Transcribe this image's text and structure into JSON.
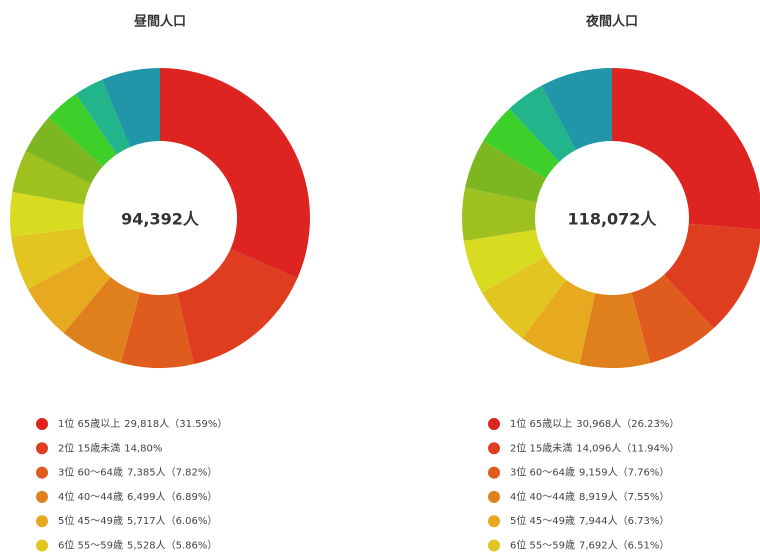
{
  "chart_data": [
    {
      "type": "donut",
      "title": "昼間人口",
      "center_label": "94,392人",
      "categories": [
        "1位 65歳以上",
        "2位 15歳未満",
        "3位 60～64歳",
        "4位 40～44歳",
        "5位 45～49歳",
        "6位 55～59歳",
        null,
        null,
        null,
        null,
        null,
        null
      ],
      "values": [
        29818,
        13969,
        7385,
        6499,
        5717,
        5528,
        4500,
        4300,
        4100,
        3600,
        3000,
        5976
      ],
      "value_labels": [
        "29,818人（31.59%）",
        "14,80%",
        "7,385人（7.82%）",
        "6,499人（6.89%）",
        "5,717人（6.06%）",
        "5,528人（5.86%）",
        null,
        null,
        null,
        null,
        null,
        null
      ],
      "colors": [
        "#dd2420",
        "#df3d1f",
        "#e05c1e",
        "#e0801d",
        "#e6a91f",
        "#e2c521",
        "#d8dc20",
        "#9ec11f",
        "#7cb722",
        "#3ecf2a",
        "#22b58c",
        "#2196a8"
      ]
    },
    {
      "type": "donut",
      "title": "夜間人口",
      "center_label": "118,072人",
      "categories": [
        "1位 65歳以上",
        "2位 15歳未満",
        "3位 60～64歳",
        "4位 40～44歳",
        "5位 45～49歳",
        "6位 55～59歳",
        null,
        null,
        null,
        null,
        null,
        null
      ],
      "values": [
        30968,
        14096,
        9159,
        8919,
        7944,
        7692,
        6900,
        6700,
        6300,
        5200,
        5000,
        9194
      ],
      "value_labels": [
        "30,968人（26.23%）",
        "14,096人（11.94%）",
        "9,159人（7.76%）",
        "8,919人（7.55%）",
        "7,944人（6.73%）",
        "7,692人（6.51%）",
        null,
        null,
        null,
        null,
        null,
        null
      ],
      "colors": [
        "#dd2420",
        "#df3d1f",
        "#e05c1e",
        "#e0801d",
        "#e6a91f",
        "#e2c521",
        "#d8dc20",
        "#9ec11f",
        "#7cb722",
        "#3ecf2a",
        "#22b58c",
        "#2196a8"
      ]
    }
  ]
}
